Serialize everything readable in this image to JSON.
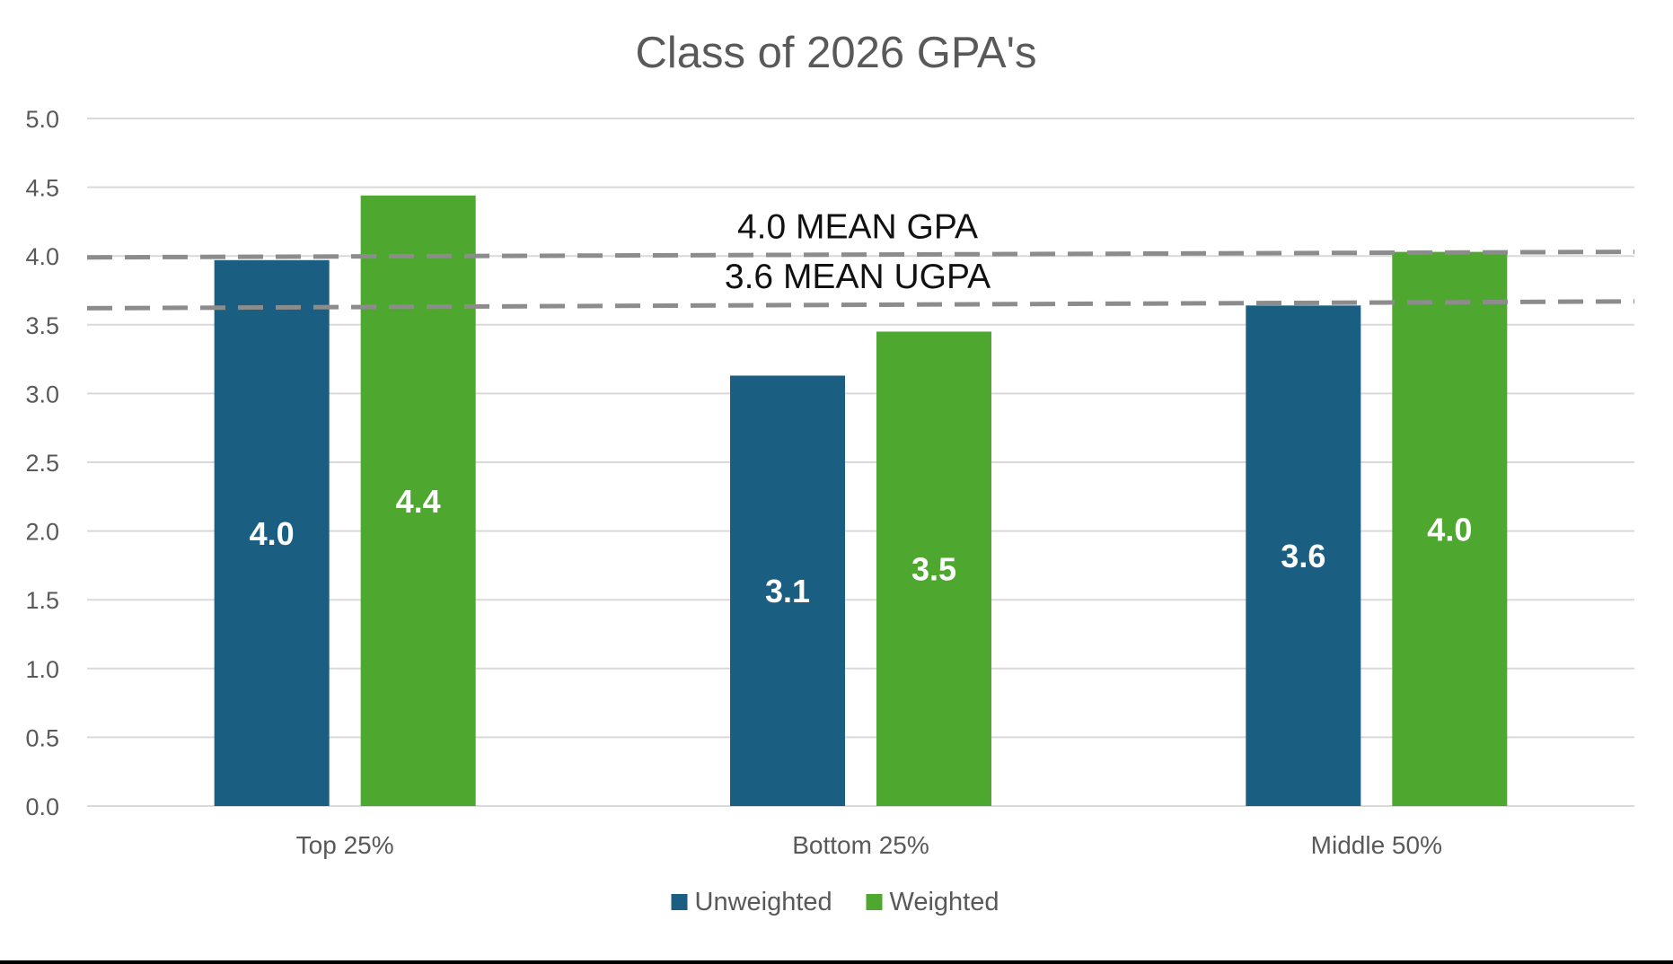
{
  "chart_data": {
    "type": "bar",
    "title": "Class of 2026 GPA's",
    "xlabel": "",
    "ylabel": "",
    "ylim": [
      0,
      5
    ],
    "yticks": [
      "0.0",
      "0.5",
      "1.0",
      "1.5",
      "2.0",
      "2.5",
      "3.0",
      "3.5",
      "4.0",
      "4.5",
      "5.0"
    ],
    "categories": [
      "Top 25%",
      "Bottom 25%",
      "Middle 50%"
    ],
    "series": [
      {
        "name": "Unweighted",
        "color": "#1a5e82",
        "values": [
          3.97,
          3.13,
          3.64
        ],
        "labels": [
          "4.0",
          "3.1",
          "3.6"
        ]
      },
      {
        "name": "Weighted",
        "color": "#4ea72e",
        "values": [
          4.44,
          3.45,
          4.03
        ],
        "labels": [
          "4.4",
          "3.5",
          "4.0"
        ]
      }
    ],
    "reference_lines": [
      {
        "label": "4.0 MEAN GPA",
        "value_start": 3.99,
        "value_end": 4.03
      },
      {
        "label": "3.6 MEAN UGPA",
        "value_start": 3.62,
        "value_end": 3.67
      }
    ],
    "grid": true,
    "legend": "bottom-center"
  }
}
